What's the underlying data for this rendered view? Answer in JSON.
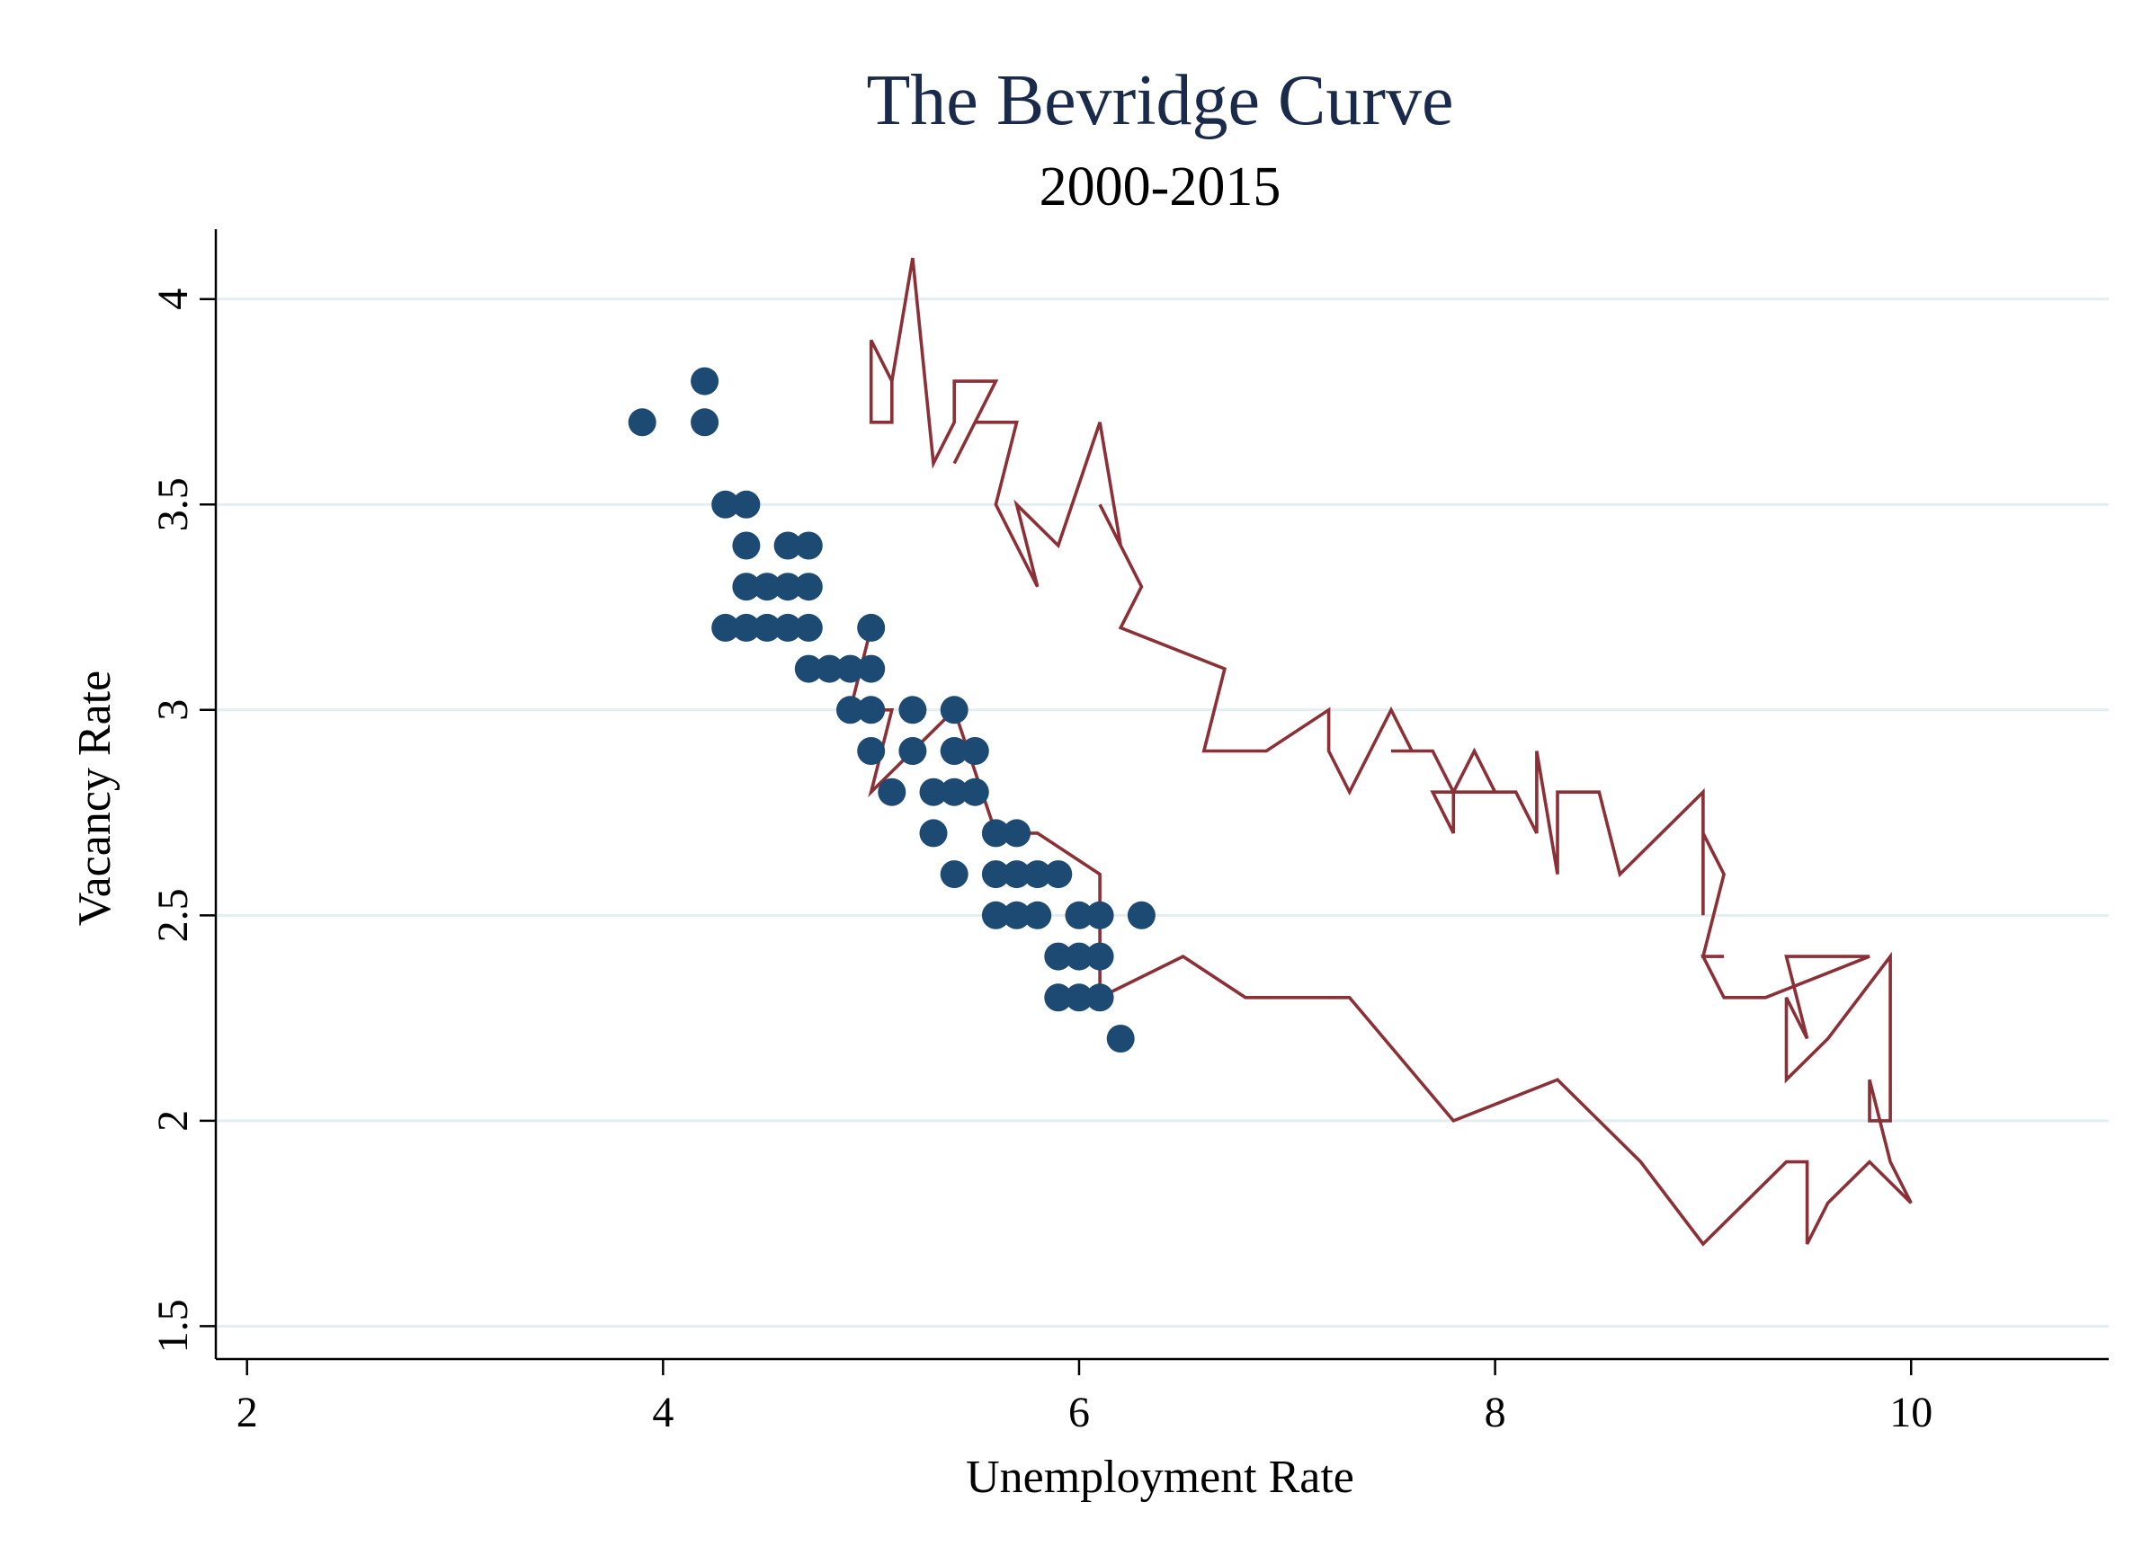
{
  "chart_data": {
    "type": "scatter",
    "title": "The Bevridge Curve",
    "subtitle": "2000-2015",
    "xlabel": "Unemployment Rate",
    "ylabel": "Vacancy Rate",
    "xlim": [
      1.85,
      10.95
    ],
    "ylim": [
      1.42,
      4.17
    ],
    "x_ticks": [
      2,
      4,
      6,
      8,
      10
    ],
    "y_ticks": [
      1.5,
      2,
      2.5,
      3,
      3.5,
      4
    ],
    "x_tick_labels": [
      "2",
      "4",
      "6",
      "8",
      "10"
    ],
    "y_tick_labels": [
      "1.5",
      "2",
      "2.5",
      "3",
      "3.5",
      "4"
    ],
    "grid": true,
    "colors": {
      "scatter": "#1d4a72",
      "line": "#8b3036",
      "title": "#1a2a4a"
    },
    "series": [
      {
        "type": "scatter",
        "points": [
          [
            3.9,
            3.7
          ],
          [
            4.2,
            3.8
          ],
          [
            4.2,
            3.7
          ],
          [
            4.3,
            3.5
          ],
          [
            4.4,
            3.5
          ],
          [
            4.4,
            3.4
          ],
          [
            4.6,
            3.4
          ],
          [
            4.7,
            3.4
          ],
          [
            4.4,
            3.3
          ],
          [
            4.5,
            3.3
          ],
          [
            4.6,
            3.3
          ],
          [
            4.7,
            3.3
          ],
          [
            4.3,
            3.2
          ],
          [
            4.4,
            3.2
          ],
          [
            4.5,
            3.2
          ],
          [
            4.6,
            3.2
          ],
          [
            4.7,
            3.2
          ],
          [
            5.0,
            3.2
          ],
          [
            4.7,
            3.1
          ],
          [
            4.8,
            3.1
          ],
          [
            4.9,
            3.1
          ],
          [
            5.0,
            3.1
          ],
          [
            4.9,
            3.0
          ],
          [
            5.0,
            3.0
          ],
          [
            5.2,
            3.0
          ],
          [
            5.4,
            3.0
          ],
          [
            5.0,
            2.9
          ],
          [
            5.2,
            2.9
          ],
          [
            5.4,
            2.9
          ],
          [
            5.5,
            2.9
          ],
          [
            5.1,
            2.8
          ],
          [
            5.3,
            2.8
          ],
          [
            5.4,
            2.8
          ],
          [
            5.5,
            2.8
          ],
          [
            5.3,
            2.7
          ],
          [
            5.6,
            2.7
          ],
          [
            5.7,
            2.7
          ],
          [
            5.4,
            2.6
          ],
          [
            5.6,
            2.6
          ],
          [
            5.7,
            2.6
          ],
          [
            5.8,
            2.6
          ],
          [
            5.9,
            2.6
          ],
          [
            5.6,
            2.5
          ],
          [
            5.7,
            2.5
          ],
          [
            5.8,
            2.5
          ],
          [
            6.0,
            2.5
          ],
          [
            6.1,
            2.5
          ],
          [
            6.3,
            2.5
          ],
          [
            5.9,
            2.4
          ],
          [
            6.0,
            2.4
          ],
          [
            6.1,
            2.4
          ],
          [
            5.9,
            2.3
          ],
          [
            6.0,
            2.3
          ],
          [
            6.1,
            2.3
          ],
          [
            6.2,
            2.2
          ]
        ]
      },
      {
        "type": "line",
        "points": [
          [
            5.0,
            3.9
          ],
          [
            5.1,
            3.8
          ],
          [
            5.1,
            3.7
          ],
          [
            5.0,
            3.7
          ],
          [
            5.0,
            3.9
          ],
          [
            5.1,
            3.8
          ],
          [
            5.2,
            4.1
          ],
          [
            5.3,
            3.6
          ],
          [
            5.4,
            3.7
          ],
          [
            5.4,
            3.8
          ],
          [
            5.6,
            3.8
          ],
          [
            5.4,
            3.6
          ],
          [
            5.5,
            3.7
          ],
          [
            5.7,
            3.7
          ],
          [
            5.6,
            3.5
          ],
          [
            5.8,
            3.3
          ],
          [
            5.7,
            3.5
          ],
          [
            5.9,
            3.4
          ],
          [
            6.1,
            3.7
          ],
          [
            6.2,
            3.4
          ],
          [
            6.1,
            3.5
          ],
          [
            6.3,
            3.3
          ],
          [
            6.2,
            3.2
          ],
          [
            6.7,
            3.1
          ],
          [
            6.6,
            2.9
          ],
          [
            6.9,
            2.9
          ],
          [
            7.2,
            3.0
          ],
          [
            7.2,
            2.9
          ],
          [
            7.3,
            2.8
          ],
          [
            7.5,
            3.0
          ],
          [
            7.6,
            2.9
          ],
          [
            7.5,
            2.9
          ],
          [
            7.7,
            2.9
          ],
          [
            7.8,
            2.8
          ],
          [
            7.9,
            2.9
          ],
          [
            8.0,
            2.8
          ],
          [
            7.7,
            2.8
          ],
          [
            7.8,
            2.7
          ],
          [
            7.8,
            2.8
          ],
          [
            8.1,
            2.8
          ],
          [
            8.2,
            2.7
          ],
          [
            8.2,
            2.9
          ],
          [
            8.3,
            2.6
          ],
          [
            8.3,
            2.8
          ],
          [
            8.5,
            2.8
          ],
          [
            8.6,
            2.6
          ],
          [
            9.0,
            2.8
          ],
          [
            9.0,
            2.5
          ],
          [
            9.0,
            2.7
          ],
          [
            9.1,
            2.6
          ],
          [
            9.0,
            2.4
          ],
          [
            9.1,
            2.4
          ],
          [
            9.0,
            2.4
          ],
          [
            9.1,
            2.3
          ],
          [
            9.3,
            2.3
          ],
          [
            9.8,
            2.4
          ],
          [
            9.4,
            2.4
          ],
          [
            9.5,
            2.2
          ],
          [
            9.4,
            2.3
          ],
          [
            9.4,
            2.1
          ],
          [
            9.6,
            2.2
          ],
          [
            9.9,
            2.4
          ],
          [
            9.9,
            2.0
          ],
          [
            9.8,
            2.0
          ],
          [
            9.8,
            2.1
          ],
          [
            9.9,
            1.9
          ],
          [
            10.0,
            1.8
          ],
          [
            9.8,
            1.9
          ],
          [
            9.6,
            1.8
          ],
          [
            9.5,
            1.7
          ],
          [
            9.5,
            1.9
          ],
          [
            9.4,
            1.9
          ],
          [
            9.0,
            1.7
          ],
          [
            8.7,
            1.9
          ],
          [
            8.3,
            2.1
          ],
          [
            7.8,
            2.0
          ],
          [
            7.3,
            2.3
          ],
          [
            6.8,
            2.3
          ],
          [
            6.5,
            2.4
          ],
          [
            6.1,
            2.3
          ],
          [
            6.1,
            2.6
          ],
          [
            5.8,
            2.7
          ],
          [
            5.6,
            2.7
          ],
          [
            5.4,
            3.0
          ],
          [
            5.0,
            2.8
          ],
          [
            5.1,
            3.0
          ],
          [
            4.9,
            3.0
          ],
          [
            5.0,
            3.2
          ]
        ]
      }
    ]
  }
}
